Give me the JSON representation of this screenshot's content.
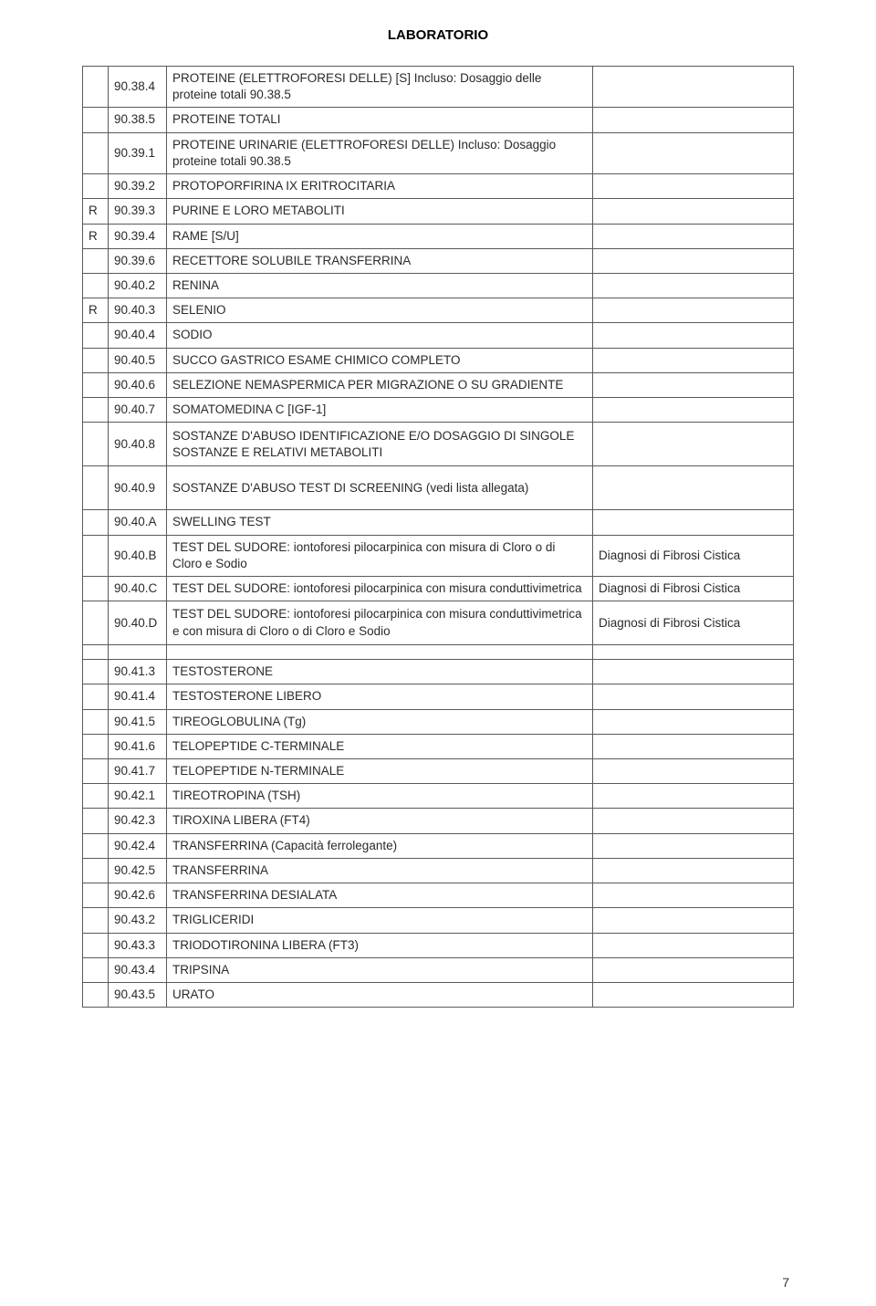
{
  "header": "LABORATORIO",
  "page_number": "7",
  "rows": [
    {
      "c1": "",
      "c2": "90.38.4",
      "c3": "PROTEINE (ELETTROFORESI DELLE) [S] Incluso: Dosaggio delle proteine totali 90.38.5",
      "c4": ""
    },
    {
      "c1": "",
      "c2": "90.38.5",
      "c3": "PROTEINE TOTALI",
      "c4": ""
    },
    {
      "c1": "",
      "c2": "90.39.1",
      "c3": "PROTEINE URINARIE (ELETTROFORESI DELLE) Incluso: Dosaggio proteine totali 90.38.5",
      "c4": ""
    },
    {
      "c1": "",
      "c2": "90.39.2",
      "c3": "PROTOPORFIRINA IX ERITROCITARIA",
      "c4": ""
    },
    {
      "c1": "R",
      "c2": "90.39.3",
      "c3": "PURINE E LORO METABOLITI",
      "c4": ""
    },
    {
      "c1": "R",
      "c2": "90.39.4",
      "c3": "RAME [S/U]",
      "c4": ""
    },
    {
      "c1": "",
      "c2": "90.39.6",
      "c3": "RECETTORE SOLUBILE TRANSFERRINA",
      "c4": ""
    },
    {
      "c1": "",
      "c2": "90.40.2",
      "c3": "RENINA",
      "c4": ""
    },
    {
      "c1": "R",
      "c2": "90.40.3",
      "c3": "SELENIO",
      "c4": ""
    },
    {
      "c1": "",
      "c2": "90.40.4",
      "c3": "SODIO",
      "c4": ""
    },
    {
      "c1": "",
      "c2": "90.40.5",
      "c3": "SUCCO GASTRICO ESAME CHIMICO COMPLETO",
      "c4": ""
    },
    {
      "c1": "",
      "c2": "90.40.6",
      "c3": "SELEZIONE NEMASPERMICA PER MIGRAZIONE O SU GRADIENTE",
      "c4": ""
    },
    {
      "c1": "",
      "c2": "90.40.7",
      "c3": "SOMATOMEDINA C [IGF-1]",
      "c4": ""
    },
    {
      "c1": "",
      "c2": "90.40.8",
      "c3": "SOSTANZE D'ABUSO IDENTIFICAZIONE E/O DOSAGGIO DI SINGOLE SOSTANZE E RELATIVI METABOLITI",
      "c4": "",
      "tall": true
    },
    {
      "c1": "",
      "c2": "90.40.9",
      "c3": "SOSTANZE D'ABUSO TEST DI SCREENING (vedi lista allegata)",
      "c4": "",
      "tall": true
    },
    {
      "c1": "",
      "c2": "90.40.A",
      "c3": "SWELLING TEST",
      "c4": ""
    },
    {
      "c1": "",
      "c2": "90.40.B",
      "c3": "TEST DEL SUDORE: iontoforesi pilocarpinica con misura di Cloro o di Cloro e Sodio",
      "c4": "Diagnosi di Fibrosi Cistica"
    },
    {
      "c1": "",
      "c2": "90.40.C",
      "c3": "TEST DEL SUDORE: iontoforesi pilocarpinica con misura conduttivimetrica",
      "c4": "Diagnosi di Fibrosi Cistica"
    },
    {
      "c1": "",
      "c2": "90.40.D",
      "c3": "TEST DEL SUDORE: iontoforesi pilocarpinica con misura conduttivimetrica e con misura di Cloro o di Cloro e Sodio",
      "c4": "Diagnosi di Fibrosi Cistica",
      "tall": true
    },
    {
      "spacer": true
    },
    {
      "c1": "",
      "c2": "90.41.3",
      "c3": "TESTOSTERONE",
      "c4": ""
    },
    {
      "c1": "",
      "c2": "90.41.4",
      "c3": "TESTOSTERONE LIBERO",
      "c4": ""
    },
    {
      "c1": "",
      "c2": "90.41.5",
      "c3": "TIREOGLOBULINA (Tg)",
      "c4": ""
    },
    {
      "c1": "",
      "c2": "90.41.6",
      "c3": "TELOPEPTIDE C-TERMINALE",
      "c4": ""
    },
    {
      "c1": "",
      "c2": "90.41.7",
      "c3": "TELOPEPTIDE N-TERMINALE",
      "c4": ""
    },
    {
      "c1": "",
      "c2": "90.42.1",
      "c3": "TIREOTROPINA (TSH)",
      "c4": ""
    },
    {
      "c1": "",
      "c2": "90.42.3",
      "c3": "TIROXINA LIBERA (FT4)",
      "c4": ""
    },
    {
      "c1": "",
      "c2": "90.42.4",
      "c3": "TRANSFERRINA (Capacità ferrolegante)",
      "c4": ""
    },
    {
      "c1": "",
      "c2": "90.42.5",
      "c3": "TRANSFERRINA",
      "c4": ""
    },
    {
      "c1": "",
      "c2": "90.42.6",
      "c3": "TRANSFERRINA DESIALATA",
      "c4": ""
    },
    {
      "c1": "",
      "c2": "90.43.2",
      "c3": "TRIGLICERIDI",
      "c4": ""
    },
    {
      "c1": "",
      "c2": "90.43.3",
      "c3": "TRIODOTIRONINA LIBERA (FT3)",
      "c4": ""
    },
    {
      "c1": "",
      "c2": "90.43.4",
      "c3": "TRIPSINA",
      "c4": ""
    },
    {
      "c1": "",
      "c2": "90.43.5",
      "c3": "URATO",
      "c4": ""
    }
  ]
}
